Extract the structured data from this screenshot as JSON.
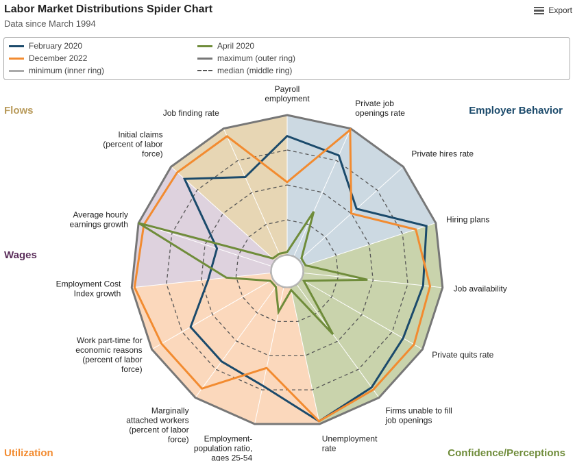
{
  "header": {
    "title": "Labor Market Distributions Spider Chart",
    "subtitle": "Data since March 1994",
    "export_label": "Export"
  },
  "legend": {
    "items": [
      {
        "label": "February 2020",
        "color": "#1b4a6b",
        "style": "solid"
      },
      {
        "label": "April 2020",
        "color": "#6f8c3a",
        "style": "solid"
      },
      {
        "label": "December 2022",
        "color": "#f28b30",
        "style": "solid"
      },
      {
        "label": "maximum (outer ring)",
        "color": "#777777",
        "style": "solid"
      },
      {
        "label": "minimum (inner ring)",
        "color": "#aaaaaa",
        "style": "solid"
      },
      {
        "label": "median (middle ring)",
        "color": "#555555",
        "style": "dashed"
      }
    ]
  },
  "chart_data": {
    "type": "radar",
    "title": "Labor Market Distributions Spider Chart",
    "subtitle": "Data since March 1994",
    "axes": [
      "Payroll\nemployment",
      "Private job\nopenings rate",
      "Private hires rate",
      "Hiring plans",
      "Job availability",
      "Private quits rate",
      "Firms unable to fill\njob openings",
      "Unemployment\nrate",
      "Employment-\npopulation ratio,\nages 25-54",
      "Marginally\nattached workers\n(percent of labor\nforce)",
      "Work part-time for\neconomic reasons\n(percent of labor\nforce)",
      "Employment Cost\nIndex growth",
      "Average hourly\nearnings growth",
      "Initial claims\n(percent of labor\nforce)",
      "Job finding rate"
    ],
    "range": [
      0,
      1
    ],
    "rings": {
      "minimum": 0,
      "median": 0.5,
      "maximum": 1
    },
    "groups": [
      {
        "name": "Employer Behavior",
        "color": "#1b4a6b",
        "fill": "#c9d7e0",
        "axes": [
          0,
          1,
          2,
          3
        ]
      },
      {
        "name": "Confidence/Perceptions",
        "color": "#6f8c3a",
        "fill": "#c6d1a8",
        "axes": [
          3,
          4,
          5,
          6,
          7
        ]
      },
      {
        "name": "Utilization",
        "color": "#f28b30",
        "fill": "#fbd6b8",
        "axes": [
          7,
          8,
          9,
          10,
          11
        ]
      },
      {
        "name": "Wages",
        "color": "#5a2d5a",
        "fill": "#dcd0dc",
        "axes": [
          11,
          12,
          13
        ]
      },
      {
        "name": "Flows",
        "color": "#b89a5a",
        "fill": "#e6d4b0",
        "axes": [
          13,
          14,
          0
        ]
      }
    ],
    "series": [
      {
        "name": "February 2020",
        "color": "#1b4a6b",
        "values": [
          0.85,
          0.79,
          0.55,
          0.93,
          0.86,
          0.84,
          0.91,
          0.98,
          0.72,
          0.68,
          0.68,
          0.45,
          0.41,
          0.87,
          0.62
        ]
      },
      {
        "name": "December 2022",
        "color": "#f28b30",
        "values": [
          0.52,
          0.99,
          0.5,
          0.85,
          0.91,
          0.93,
          0.93,
          0.98,
          0.59,
          0.92,
          0.92,
          0.98,
          0.96,
          0.94,
          0.94
        ]
      },
      {
        "name": "April 2020",
        "color": "#6f8c3a",
        "values": [
          0.02,
          0.35,
          0.02,
          0.02,
          0.46,
          0.02,
          0.44,
          0.02,
          0.18,
          0.02,
          0.02,
          0.32,
          1.0,
          0.02,
          0.02
        ]
      }
    ],
    "legend_position": "top",
    "grid": true
  }
}
